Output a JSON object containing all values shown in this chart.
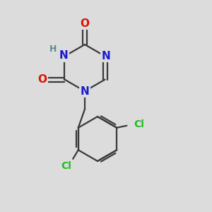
{
  "background_color": "#dcdcdc",
  "bond_color": "#3a3a3a",
  "bond_width": 1.6,
  "atom_colors": {
    "O": "#dd1100",
    "N": "#1a1acc",
    "Cl": "#22bb22",
    "H": "#5a8a8a",
    "C": "#3a3a3a"
  },
  "font_size_atoms": 11,
  "font_size_H": 9,
  "font_size_Cl": 10
}
